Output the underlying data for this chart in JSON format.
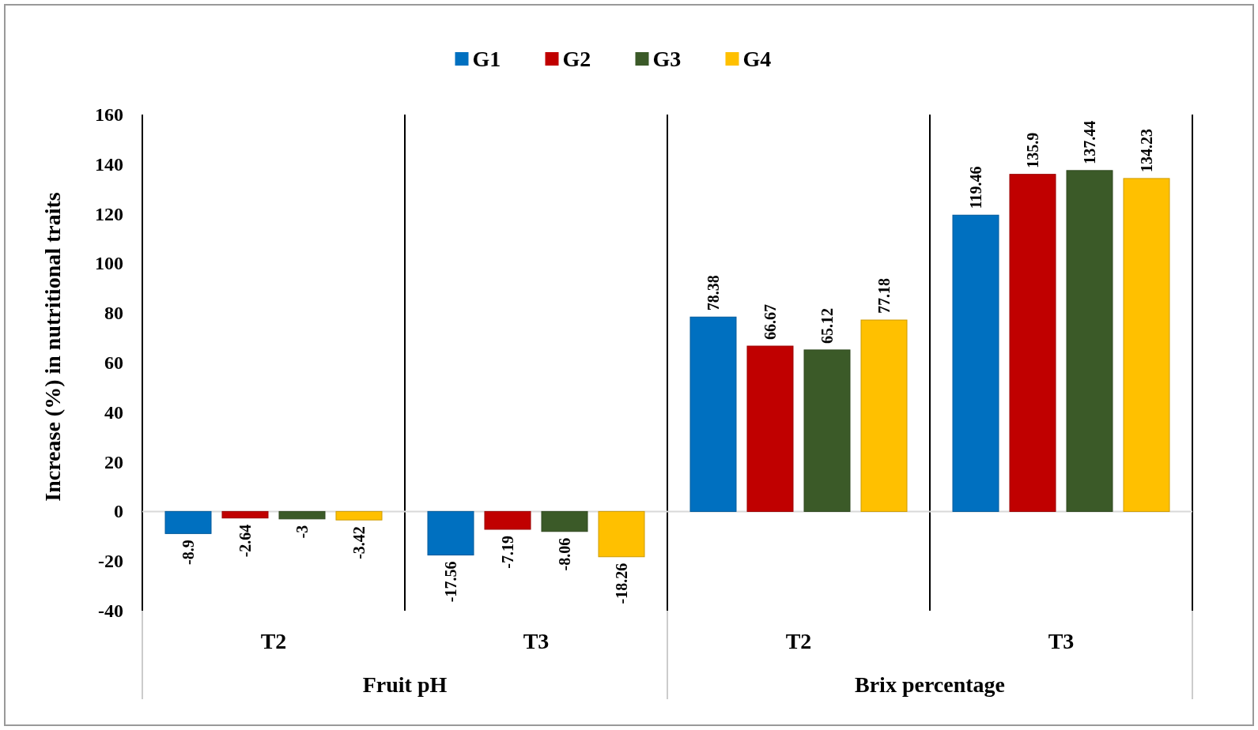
{
  "chart_data": {
    "type": "bar",
    "ylabel": "Increase (%) in nutritional traits",
    "categories": [
      "T2",
      "T3",
      "T2",
      "T3"
    ],
    "annotations": [
      "Fruit pH",
      "Brix percentage"
    ],
    "series": [
      {
        "name": "G1",
        "color": "#0070c0",
        "values": [
          -8.9,
          -17.56,
          78.38,
          119.46
        ]
      },
      {
        "name": "G2",
        "color": "#c00000",
        "values": [
          -2.64,
          -7.19,
          66.67,
          135.9
        ]
      },
      {
        "name": "G3",
        "color": "#3b5a28",
        "values": [
          -3,
          -8.06,
          65.12,
          137.44
        ]
      },
      {
        "name": "G4",
        "color": "#ffc000",
        "values": [
          -3.42,
          -18.26,
          77.18,
          134.23
        ]
      }
    ],
    "ylim": [
      -40,
      160
    ],
    "yticks": [
      -40,
      -20,
      0,
      20,
      40,
      60,
      80,
      100,
      120,
      140,
      160
    ],
    "data_labels": true,
    "legend": "top"
  }
}
